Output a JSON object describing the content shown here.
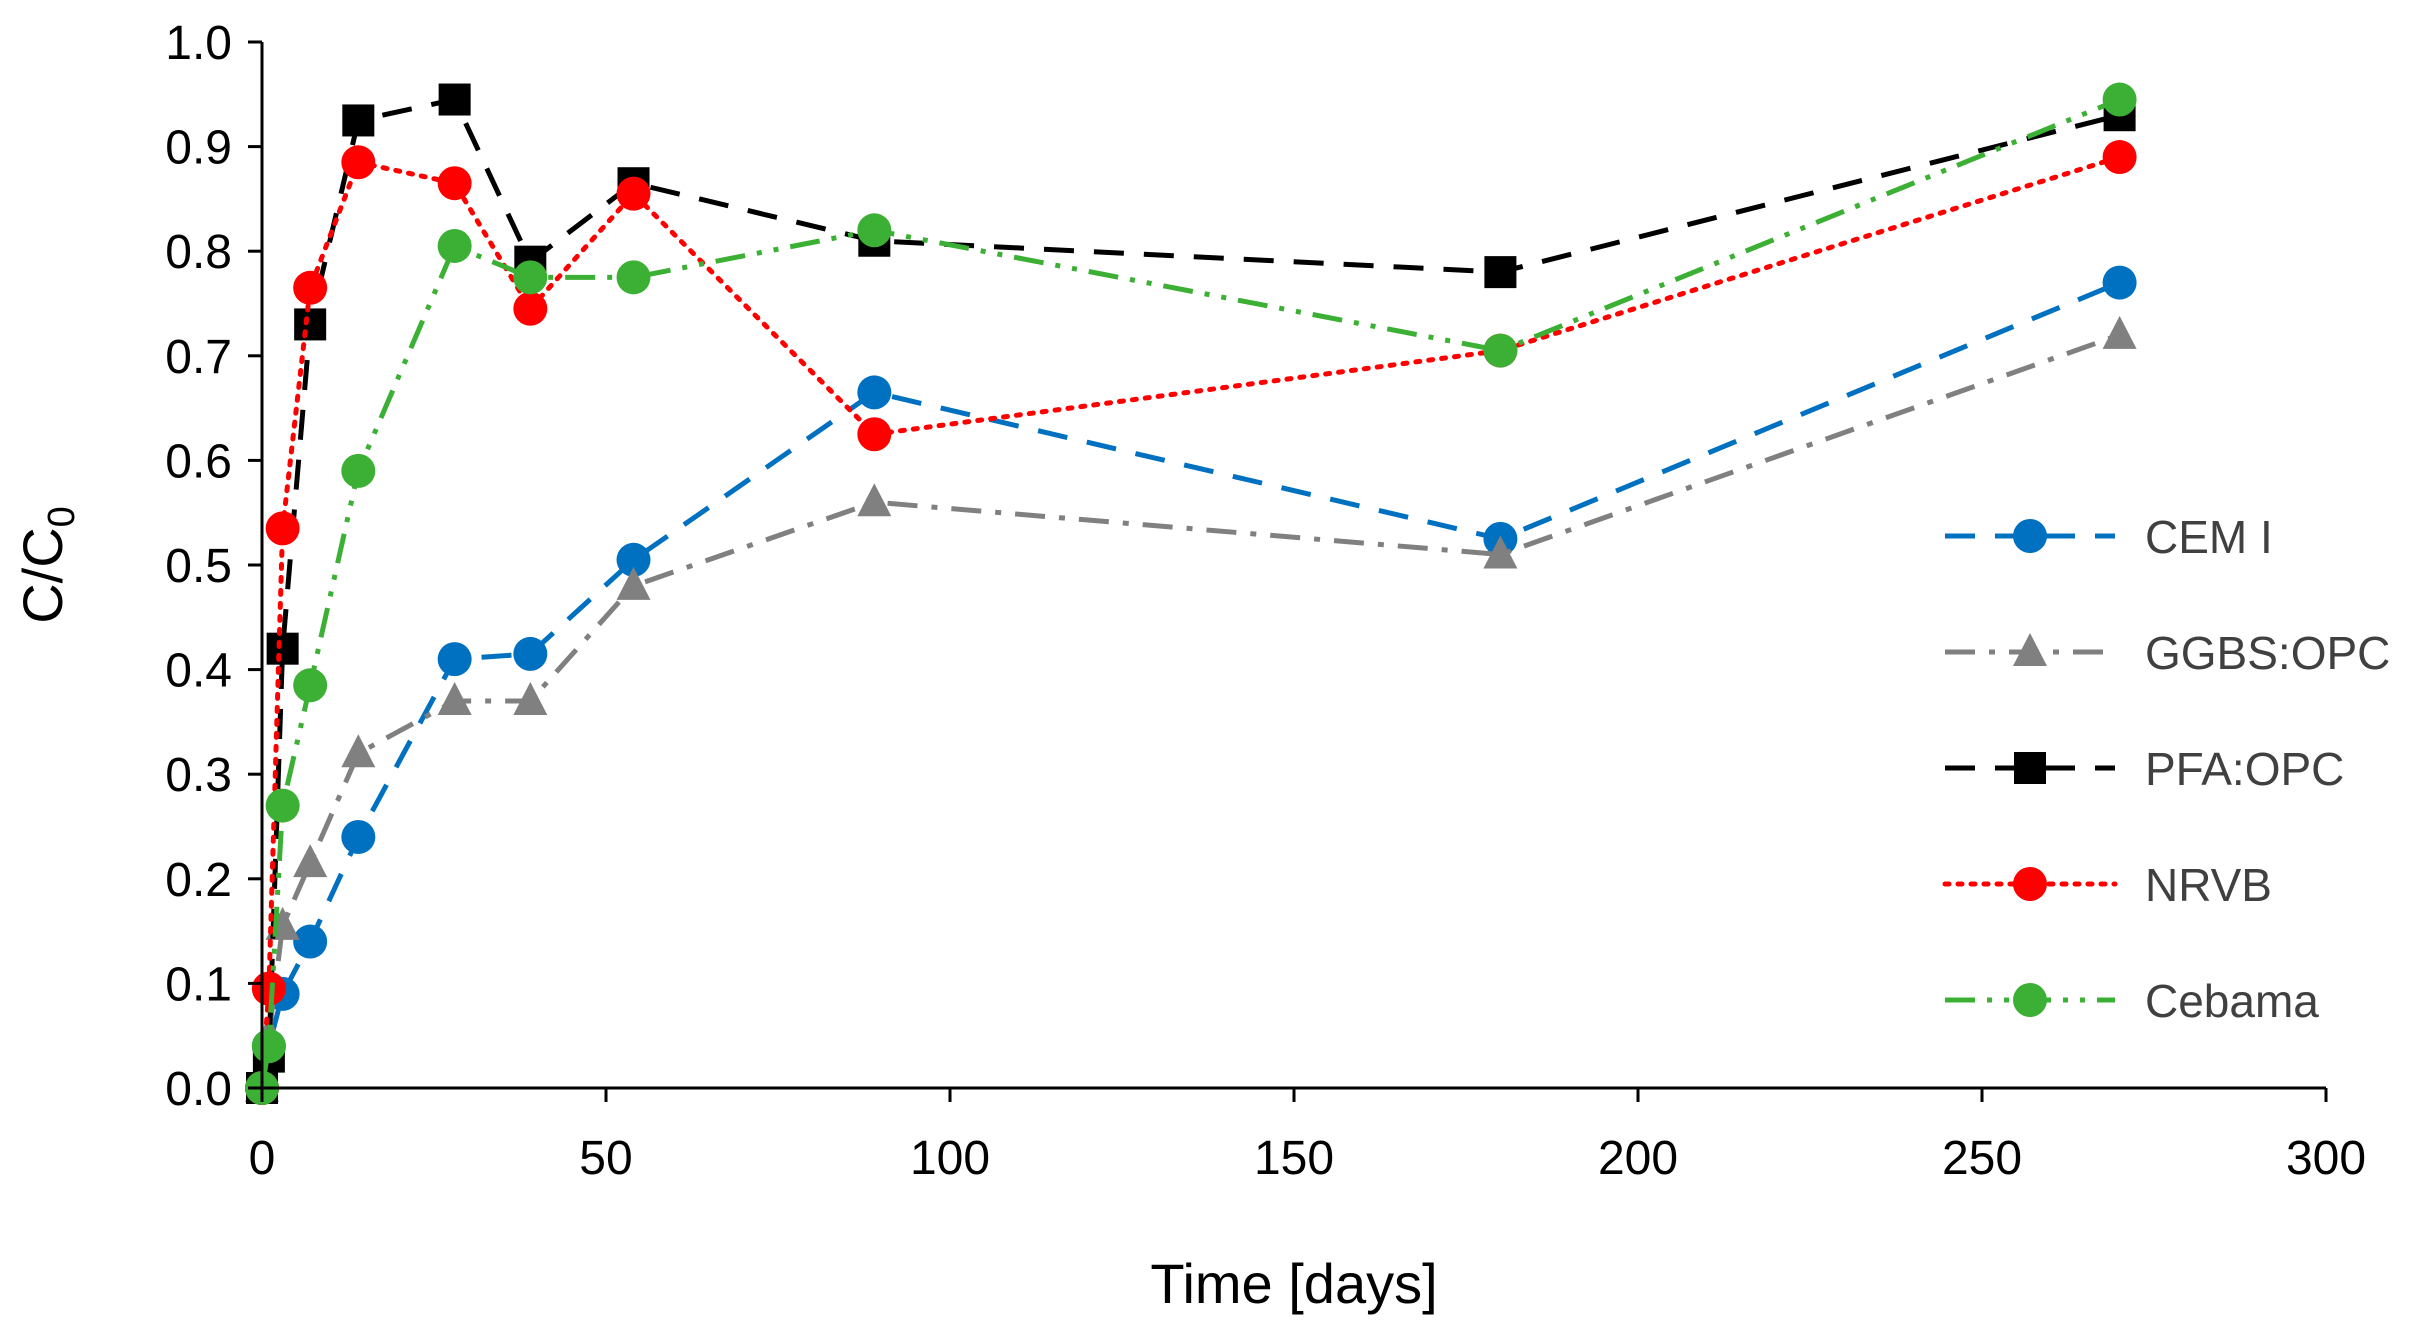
{
  "chart_data": {
    "type": "line",
    "title": "",
    "xlabel": "Time [days]",
    "ylabel_main": "C/C",
    "ylabel_sub": "0",
    "xlim": [
      0,
      300
    ],
    "ylim": [
      0.0,
      1.0
    ],
    "xticks": [
      0,
      50,
      100,
      150,
      200,
      250,
      300
    ],
    "xtick_labels": [
      "0",
      "50",
      "100",
      "150",
      "200",
      "250",
      "300"
    ],
    "yticks": [
      0.0,
      0.1,
      0.2,
      0.3,
      0.4,
      0.5,
      0.6,
      0.7,
      0.8,
      0.9,
      1.0
    ],
    "ytick_labels": [
      "0.0",
      "0.1",
      "0.2",
      "0.3",
      "0.4",
      "0.5",
      "0.6",
      "0.7",
      "0.8",
      "0.9",
      "1.0"
    ],
    "grid": false,
    "legend_position": "right",
    "series": [
      {
        "name": "CEM I",
        "color": "#0070C0",
        "marker": "circle",
        "line_style": "dash",
        "x": [
          0,
          1,
          3,
          7,
          14,
          28,
          39,
          54,
          89,
          180,
          270
        ],
        "y": [
          0.0,
          0.04,
          0.09,
          0.14,
          0.24,
          0.41,
          0.415,
          0.505,
          0.665,
          0.525,
          0.77
        ]
      },
      {
        "name": "GGBS:OPC",
        "color": "#808080",
        "marker": "triangle",
        "line_style": "dashdot",
        "x": [
          0,
          1,
          3,
          7,
          14,
          28,
          39,
          54,
          89,
          180,
          270
        ],
        "y": [
          0.0,
          0.05,
          0.155,
          0.215,
          0.32,
          0.37,
          0.37,
          0.48,
          0.56,
          0.51,
          0.72
        ]
      },
      {
        "name": "PFA:OPC",
        "color": "#000000",
        "marker": "square",
        "line_style": "dash",
        "x": [
          0,
          1,
          3,
          7,
          14,
          28,
          39,
          54,
          89,
          180,
          270
        ],
        "y": [
          0.0,
          0.03,
          0.42,
          0.73,
          0.925,
          0.945,
          0.79,
          0.865,
          0.81,
          0.78,
          0.93
        ]
      },
      {
        "name": "NRVB",
        "color": "#FF0000",
        "marker": "circle",
        "line_style": "dot",
        "x": [
          0,
          1,
          3,
          7,
          14,
          28,
          39,
          54,
          89,
          180,
          270
        ],
        "y": [
          0.0,
          0.095,
          0.535,
          0.765,
          0.885,
          0.865,
          0.745,
          0.855,
          0.625,
          0.705,
          0.89
        ]
      },
      {
        "name": "Cebama",
        "color": "#3CB034",
        "marker": "circle",
        "line_style": "dashdotdot",
        "x": [
          0,
          1,
          3,
          7,
          14,
          28,
          39,
          54,
          89,
          180,
          270
        ],
        "y": [
          0.0,
          0.04,
          0.27,
          0.385,
          0.59,
          0.805,
          0.775,
          0.775,
          0.82,
          0.705,
          0.945
        ]
      }
    ]
  }
}
